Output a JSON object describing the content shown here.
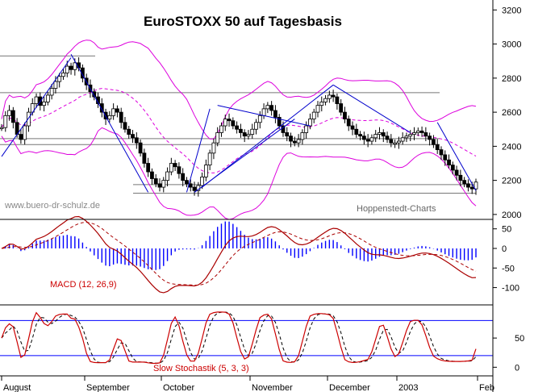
{
  "chart_data": [
    {
      "type": "candlestick",
      "title": "EuroSTOXX 50 auf Tagesbasis",
      "annotations": [
        "www.buero-dr-schulz.de",
        "Hoppenstedt-Charts"
      ],
      "yticks": [
        "3200",
        "3000",
        "2800",
        "2600",
        "2400",
        "2200",
        "2000"
      ],
      "ylim": [
        1990,
        3230
      ],
      "xticks": [
        "August",
        "September",
        "October",
        "November",
        "December",
        "2003",
        "Feb"
      ],
      "trading_days": 124,
      "close": [
        2510,
        2580,
        2610,
        2540,
        2470,
        2440,
        2520,
        2600,
        2650,
        2690,
        2640,
        2660,
        2700,
        2740,
        2780,
        2810,
        2830,
        2870,
        2850,
        2890,
        2860,
        2800,
        2760,
        2720,
        2690,
        2650,
        2600,
        2560,
        2580,
        2620,
        2600,
        2540,
        2500,
        2470,
        2450,
        2420,
        2360,
        2300,
        2250,
        2210,
        2180,
        2160,
        2200,
        2250,
        2300,
        2280,
        2240,
        2200,
        2180,
        2160,
        2140,
        2170,
        2220,
        2290,
        2360,
        2420,
        2480,
        2520,
        2560,
        2550,
        2520,
        2500,
        2480,
        2460,
        2470,
        2500,
        2540,
        2580,
        2620,
        2640,
        2610,
        2570,
        2520,
        2480,
        2460,
        2430,
        2420,
        2440,
        2480,
        2520,
        2560,
        2600,
        2640,
        2660,
        2680,
        2700,
        2690,
        2650,
        2600,
        2560,
        2520,
        2500,
        2470,
        2460,
        2440,
        2430,
        2450,
        2470,
        2480,
        2460,
        2440,
        2420,
        2420,
        2430,
        2450,
        2460,
        2470,
        2480,
        2490,
        2480,
        2460,
        2440,
        2410,
        2380,
        2350,
        2320,
        2290,
        2260,
        2230,
        2200,
        2180,
        2160,
        2150,
        2190
      ],
      "bollinger_bands": true,
      "horizontal_lines": [
        2930,
        2715,
        2445,
        2410,
        2175,
        2125
      ],
      "trendlines": true
    },
    {
      "type": "line",
      "label": "MACD (12, 26,9)",
      "yticks": [
        "50",
        "0",
        "-50",
        "-100"
      ],
      "ylim": [
        -140,
        70
      ],
      "histogram": true,
      "signal_line": true
    },
    {
      "type": "line",
      "label": "Slow Stochastik (5, 3, 3)",
      "yticks": [
        "50",
        "0"
      ],
      "ylim": [
        -12,
        104
      ],
      "reference_lines": [
        80,
        20
      ],
      "percent_d": true
    }
  ],
  "colors": {
    "price": "#000000",
    "bollinger": "#dd00dd",
    "trendline": "#0000cc",
    "macd": "#aa0000",
    "macd_histogram": "#0000ff",
    "stoch_k": "#cc0000",
    "stoch_d": "#000000",
    "stoch_ref": "#0000ff"
  }
}
